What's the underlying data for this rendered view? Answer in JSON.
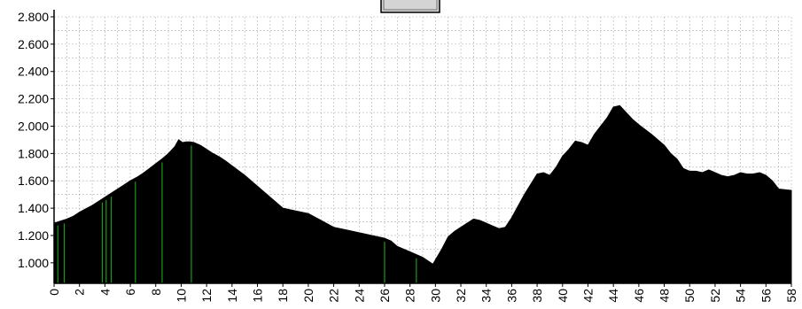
{
  "chart_data": {
    "type": "area",
    "title": "",
    "xlabel": "",
    "ylabel": "",
    "xlim": [
      0,
      58
    ],
    "ylim": [
      850,
      2800
    ],
    "grid": true,
    "legend": "none",
    "area_color": "#000000",
    "grid_color": "#b0b0b0",
    "marker_color": "#1a9a1a",
    "y_ticks": [
      {
        "value": 1000,
        "label": "1.000"
      },
      {
        "value": 1200,
        "label": "1.200"
      },
      {
        "value": 1400,
        "label": "1.400"
      },
      {
        "value": 1600,
        "label": "1.600"
      },
      {
        "value": 1800,
        "label": "1.800"
      },
      {
        "value": 2000,
        "label": "2.000"
      },
      {
        "value": 2200,
        "label": "2.200"
      },
      {
        "value": 2400,
        "label": "2.400"
      },
      {
        "value": 2600,
        "label": "2.600"
      },
      {
        "value": 2800,
        "label": "2.800"
      }
    ],
    "x_ticks": [
      {
        "value": 0,
        "label": "0"
      },
      {
        "value": 2,
        "label": "2"
      },
      {
        "value": 4,
        "label": "4"
      },
      {
        "value": 6,
        "label": "6"
      },
      {
        "value": 8,
        "label": "8"
      },
      {
        "value": 10,
        "label": "10"
      },
      {
        "value": 12,
        "label": "12"
      },
      {
        "value": 14,
        "label": "14"
      },
      {
        "value": 16,
        "label": "16"
      },
      {
        "value": 18,
        "label": "18"
      },
      {
        "value": 20,
        "label": "20"
      },
      {
        "value": 22,
        "label": "22"
      },
      {
        "value": 24,
        "label": "24"
      },
      {
        "value": 26,
        "label": "26"
      },
      {
        "value": 28,
        "label": "28"
      },
      {
        "value": 30,
        "label": "30"
      },
      {
        "value": 32,
        "label": "32"
      },
      {
        "value": 34,
        "label": "34"
      },
      {
        "value": 36,
        "label": "36"
      },
      {
        "value": 38,
        "label": "38"
      },
      {
        "value": 40,
        "label": "40"
      },
      {
        "value": 42,
        "label": "42"
      },
      {
        "value": 44,
        "label": "44"
      },
      {
        "value": 46,
        "label": "46"
      },
      {
        "value": 48,
        "label": "48"
      },
      {
        "value": 50,
        "label": "50"
      },
      {
        "value": 52,
        "label": "52"
      },
      {
        "value": 54,
        "label": "54"
      },
      {
        "value": 56,
        "label": "56"
      },
      {
        "value": 58,
        "label": "58"
      }
    ],
    "markers_x": [
      0.3,
      0.8,
      3.8,
      4.1,
      4.5,
      6.4,
      8.5,
      10.8,
      26.0,
      28.5
    ],
    "series": [
      {
        "x": [
          0,
          0.5,
          1,
          1.5,
          2,
          2.5,
          3,
          3.5,
          4,
          4.5,
          5,
          5.5,
          6,
          6.5,
          7,
          7.5,
          8,
          8.5,
          9,
          9.5,
          9.8,
          10.1,
          10.4,
          10.7,
          11,
          11.5,
          12,
          12.5,
          13,
          13.5,
          14,
          15,
          16,
          17,
          18,
          19,
          20,
          21,
          22,
          23,
          24,
          25,
          26,
          26.5,
          27,
          28,
          29,
          29.8,
          30.5,
          31,
          31.5,
          32,
          32.5,
          33,
          33.5,
          34,
          34.5,
          35,
          35.5,
          36,
          37,
          38,
          38.5,
          39,
          39.5,
          40,
          40.5,
          41,
          41.5,
          42,
          42.5,
          43,
          43.5,
          44,
          44.5,
          45,
          45.5,
          46,
          47,
          48,
          48.5,
          49,
          49.5,
          50,
          50.5,
          51,
          51.5,
          52,
          52.5,
          53,
          53.5,
          54,
          54.5,
          55,
          55.5,
          56,
          56.5,
          57,
          58
        ],
        "y": [
          1290,
          1305,
          1320,
          1340,
          1370,
          1395,
          1420,
          1450,
          1480,
          1510,
          1540,
          1570,
          1600,
          1625,
          1655,
          1690,
          1725,
          1760,
          1800,
          1850,
          1900,
          1880,
          1885,
          1885,
          1880,
          1860,
          1830,
          1800,
          1775,
          1745,
          1710,
          1640,
          1560,
          1480,
          1400,
          1380,
          1360,
          1310,
          1260,
          1240,
          1220,
          1200,
          1180,
          1160,
          1120,
          1080,
          1040,
          990,
          1100,
          1190,
          1230,
          1260,
          1290,
          1320,
          1310,
          1290,
          1270,
          1250,
          1260,
          1330,
          1500,
          1650,
          1660,
          1640,
          1700,
          1780,
          1830,
          1890,
          1880,
          1860,
          1940,
          2000,
          2060,
          2140,
          2150,
          2100,
          2050,
          2010,
          1940,
          1860,
          1800,
          1760,
          1690,
          1670,
          1670,
          1660,
          1680,
          1660,
          1640,
          1630,
          1640,
          1660,
          1650,
          1650,
          1660,
          1640,
          1600,
          1540,
          1530
        ]
      }
    ]
  }
}
